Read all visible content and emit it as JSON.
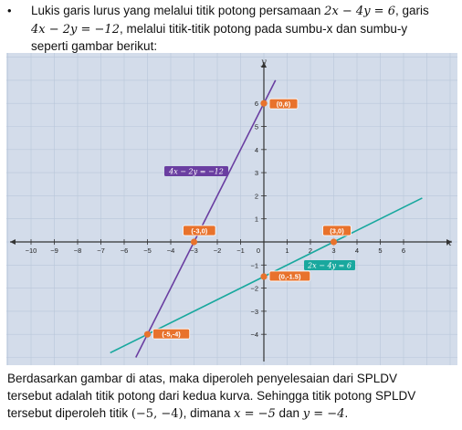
{
  "intro": {
    "bullet": "•",
    "line1_pre": "Lukis garis lurus yang melalui titik potong persamaan ",
    "eq1": "2x − 4y = 6",
    "line1_post": ", garis",
    "eq2": "4x − 2y = −12",
    "line2_post": ", melalui titik-titik potong pada sumbu-x dan sumbu-y",
    "line3": "seperti gambar berikut:"
  },
  "chart_data": {
    "type": "line",
    "xlabel": "x",
    "ylabel": "y",
    "xlim": [
      -10.8,
      7.6
    ],
    "ylim": [
      -4.8,
      7.5
    ],
    "x_ticks": [
      "-10",
      "-9",
      "-8",
      "-7",
      "-6",
      "-5",
      "-4",
      "-3",
      "-2",
      "-1",
      "0",
      "1",
      "2",
      "3",
      "4",
      "5",
      "6"
    ],
    "y_ticks": [
      "6",
      "5",
      "4",
      "3",
      "2",
      "1",
      "-1",
      "-2",
      "-3",
      "-4"
    ],
    "grid": true,
    "series": [
      {
        "name": "4x − 2y = −12",
        "color": "#6a3ea1",
        "x": [
          -5.5,
          0.5
        ],
        "y": [
          -5,
          7
        ]
      },
      {
        "name": "2x − 4y = 6",
        "color": "#19a89e",
        "x": [
          -6.6,
          6.8
        ],
        "y": [
          -4.8,
          1.9
        ]
      }
    ],
    "points": [
      {
        "label": "(0,6)",
        "x": 0,
        "y": 6
      },
      {
        "label": "(-3,0)",
        "x": -3,
        "y": 0
      },
      {
        "label": "(3,0)",
        "x": 3,
        "y": 0
      },
      {
        "label": "(0,-1.5)",
        "x": 0,
        "y": -1.5
      },
      {
        "label": "(-5,-4)",
        "x": -5,
        "y": -4
      }
    ],
    "colors": {
      "background": "#d3dcea",
      "grid": "#b9c6d9",
      "point": "#e8722c",
      "label_bg": "#e8722c"
    }
  },
  "outro": {
    "line1": "Berdasarkan gambar di atas, maka diperoleh penyelesaian dari SPLDV",
    "line2": "tersebut adalah titik potong dari kedua kurva. Sehingga titik potong SPLDV",
    "line3_pre": "tersebut diperoleh titik ",
    "point": "(−5, −4)",
    "line3_mid": ", dimana ",
    "xval": "x = −5",
    "line3_and": " dan ",
    "yval": "y = −4",
    "line3_end": "."
  }
}
